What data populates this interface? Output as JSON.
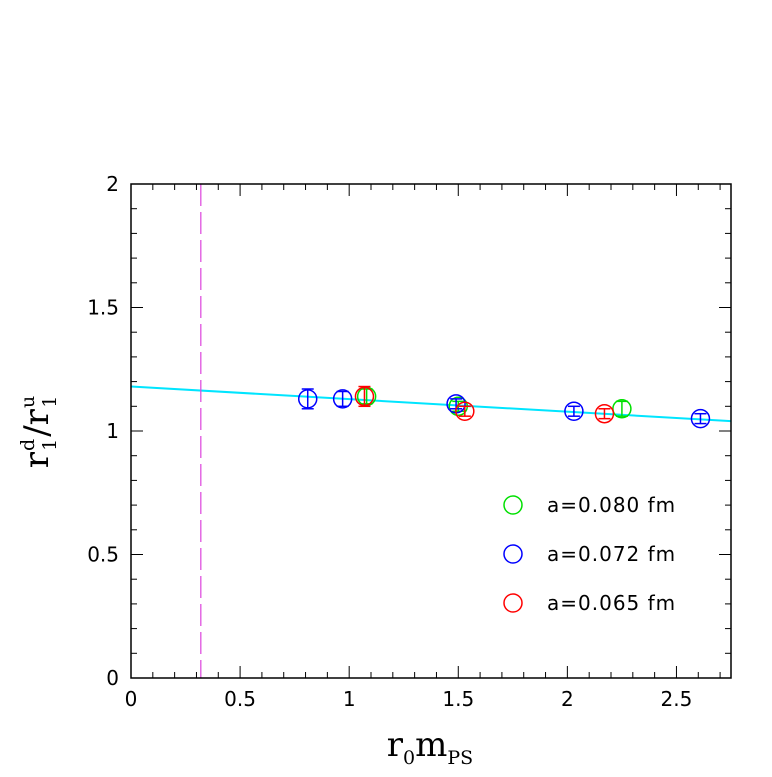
{
  "chart_data": {
    "type": "scatter",
    "title": "",
    "xlabel": {
      "main": "r",
      "sub1": "0",
      "main2": "m",
      "sub2": "PS"
    },
    "ylabel": {
      "base1": "r",
      "sup1": "d",
      "sub1": "1",
      "slash": "/",
      "base2": "r",
      "sup2": "u",
      "sub2": "1"
    },
    "xlim": [
      0,
      2.75
    ],
    "ylim": [
      0,
      2
    ],
    "xticks": [
      {
        "value": 0,
        "label": "0"
      },
      {
        "value": 0.5,
        "label": "0.5"
      },
      {
        "value": 1,
        "label": "1"
      },
      {
        "value": 1.5,
        "label": "1.5"
      },
      {
        "value": 2,
        "label": "2"
      },
      {
        "value": 2.5,
        "label": "2.5"
      }
    ],
    "yticks": [
      {
        "value": 0,
        "label": "0"
      },
      {
        "value": 0.5,
        "label": "0.5"
      },
      {
        "value": 1,
        "label": "1"
      },
      {
        "value": 1.5,
        "label": "1.5"
      },
      {
        "value": 2,
        "label": "2"
      }
    ],
    "grid": false,
    "legend_position": "lower-right",
    "series": [
      {
        "name": "a=0.080 fm",
        "color": "#00e000",
        "points": [
          {
            "x": 1.08,
            "y": 1.14,
            "err": 0.03
          },
          {
            "x": 1.5,
            "y": 1.1,
            "err": 0.02
          },
          {
            "x": 2.25,
            "y": 1.09,
            "err": 0.03
          }
        ]
      },
      {
        "name": "a=0.072 fm",
        "color": "#0000ff",
        "points": [
          {
            "x": 0.81,
            "y": 1.13,
            "err": 0.04
          },
          {
            "x": 0.97,
            "y": 1.13,
            "err": 0.03
          },
          {
            "x": 1.49,
            "y": 1.11,
            "err": 0.02
          },
          {
            "x": 2.03,
            "y": 1.08,
            "err": 0.02
          },
          {
            "x": 2.61,
            "y": 1.05,
            "err": 0.02
          }
        ]
      },
      {
        "name": "a=0.065 fm",
        "color": "#ff0000",
        "points": [
          {
            "x": 1.07,
            "y": 1.14,
            "err": 0.04
          },
          {
            "x": 1.53,
            "y": 1.08,
            "err": 0.02
          },
          {
            "x": 2.17,
            "y": 1.07,
            "err": 0.02
          }
        ]
      }
    ],
    "fit_line": {
      "color": "#00e5ff",
      "x": [
        0,
        2.75
      ],
      "y": [
        1.18,
        1.04
      ]
    },
    "reference_line": {
      "color": "#dd44dd",
      "x": 0.32,
      "style": "dashed"
    }
  }
}
